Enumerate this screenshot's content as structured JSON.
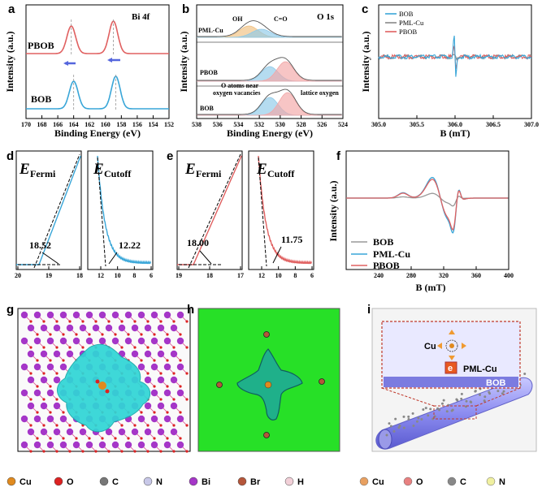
{
  "panel_labels": [
    "a",
    "b",
    "c",
    "d",
    "e",
    "f",
    "g",
    "h",
    "i"
  ],
  "colors": {
    "blue": "#39a6d8",
    "red": "#e06060",
    "gray": "#999999",
    "peakO": "#f0c080",
    "peakB": "#8ec9e8",
    "peakR": "#f2a6a6",
    "green": "#27e027"
  },
  "chart_data": [
    {
      "panel": "a",
      "type": "line",
      "title": "Bi 4f",
      "xlabel": "Binding Energy (eV)",
      "ylabel": "Intensity (a.u.)",
      "xlim": [
        170,
        152
      ],
      "xticks": [
        "170",
        "168",
        "166",
        "164",
        "162",
        "160",
        "158",
        "156",
        "154",
        "152"
      ],
      "series": [
        {
          "name": "PBOB",
          "color": "#e06060",
          "peaks": [
            164.3,
            159.0
          ],
          "offset": 1.0
        },
        {
          "name": "BOB",
          "color": "#39a6d8",
          "peaks": [
            164.0,
            158.7
          ],
          "offset": 0.0
        }
      ]
    },
    {
      "panel": "b",
      "type": "line",
      "title": "O 1s",
      "xlabel": "Binding Energy (eV)",
      "ylabel": "Intensity (a.u.)",
      "xlim": [
        538,
        524
      ],
      "xticks": [
        "538",
        "536",
        "534",
        "532",
        "530",
        "528",
        "526",
        "524"
      ],
      "series": [
        {
          "name": "PML-Cu",
          "components": [
            {
              "label": "OH",
              "center": 533.0
            },
            {
              "label": "C=O",
              "center": 531.8
            }
          ]
        },
        {
          "name": "PBOB",
          "components": [
            {
              "center": 531.0
            },
            {
              "center": 529.5
            }
          ]
        },
        {
          "name": "BOB",
          "components": [
            {
              "label": "O atoms near oxygen vacancies",
              "center": 531.0
            },
            {
              "label": "lattice oxygen",
              "center": 529.3
            }
          ]
        }
      ],
      "annotations": {
        "oh": "OH",
        "co": "C=O",
        "vac1": "O atoms near",
        "vac2": "oxygen vacancies",
        "lattice": "lattice oxygen"
      }
    },
    {
      "panel": "c",
      "type": "line",
      "xlabel": "B (mT)",
      "ylabel": "Intensity (a.u.)",
      "xlim": [
        305.0,
        307.0
      ],
      "xticks": [
        "305.0",
        "305.5",
        "306.0",
        "306.5",
        "307.0"
      ],
      "series": [
        {
          "name": "BOB",
          "color": "#39a6d8",
          "center": 306.0,
          "amplitude": 1.0
        },
        {
          "name": "PML-Cu",
          "color": "#888888",
          "center": 306.0,
          "amplitude": 0.05
        },
        {
          "name": "PBOB",
          "color": "#e06060",
          "center": 306.0,
          "amplitude": 0.55
        }
      ]
    },
    {
      "panel": "d",
      "type": "line",
      "subplots": [
        {
          "label": "E",
          "subscript": "Fermi",
          "xlim": [
            20,
            18
          ],
          "xticks": [
            "20",
            "19",
            "18"
          ],
          "value": "18.52",
          "color": "#39a6d8"
        },
        {
          "label": "E",
          "subscript": "Cutoff",
          "xlim": [
            13,
            6
          ],
          "xticks": [
            "12",
            "10",
            "8",
            "6"
          ],
          "value": "12.22",
          "color": "#39a6d8"
        }
      ]
    },
    {
      "panel": "e",
      "type": "line",
      "subplots": [
        {
          "label": "E",
          "subscript": "Fermi",
          "xlim": [
            19,
            17
          ],
          "xticks": [
            "19",
            "18",
            "17"
          ],
          "value": "18.00",
          "color": "#e06060"
        },
        {
          "label": "E",
          "subscript": "Cutoff",
          "xlim": [
            13,
            6
          ],
          "xticks": [
            "12",
            "10",
            "8",
            "6"
          ],
          "value": "11.75",
          "color": "#e06060"
        }
      ]
    },
    {
      "panel": "f",
      "type": "line",
      "xlabel": "B (mT)",
      "ylabel": "Intensity (a.u.)",
      "xlim": [
        200,
        400
      ],
      "xticks": [
        "240",
        "280",
        "320",
        "360",
        "400"
      ],
      "series": [
        {
          "name": "BOB",
          "color": "#999999"
        },
        {
          "name": "PML-Cu",
          "color": "#39a6d8"
        },
        {
          "name": "PBOB",
          "color": "#e06060"
        }
      ]
    }
  ],
  "structure_key": [
    "Cu",
    "O",
    "C",
    "N",
    "Bi",
    "Br",
    "H"
  ],
  "schematic_key": [
    "Cu",
    "O",
    "C",
    "N"
  ],
  "schematic": {
    "cu": "Cu",
    "pml": "PML-Cu",
    "bob": "BOB",
    "e": "e"
  }
}
